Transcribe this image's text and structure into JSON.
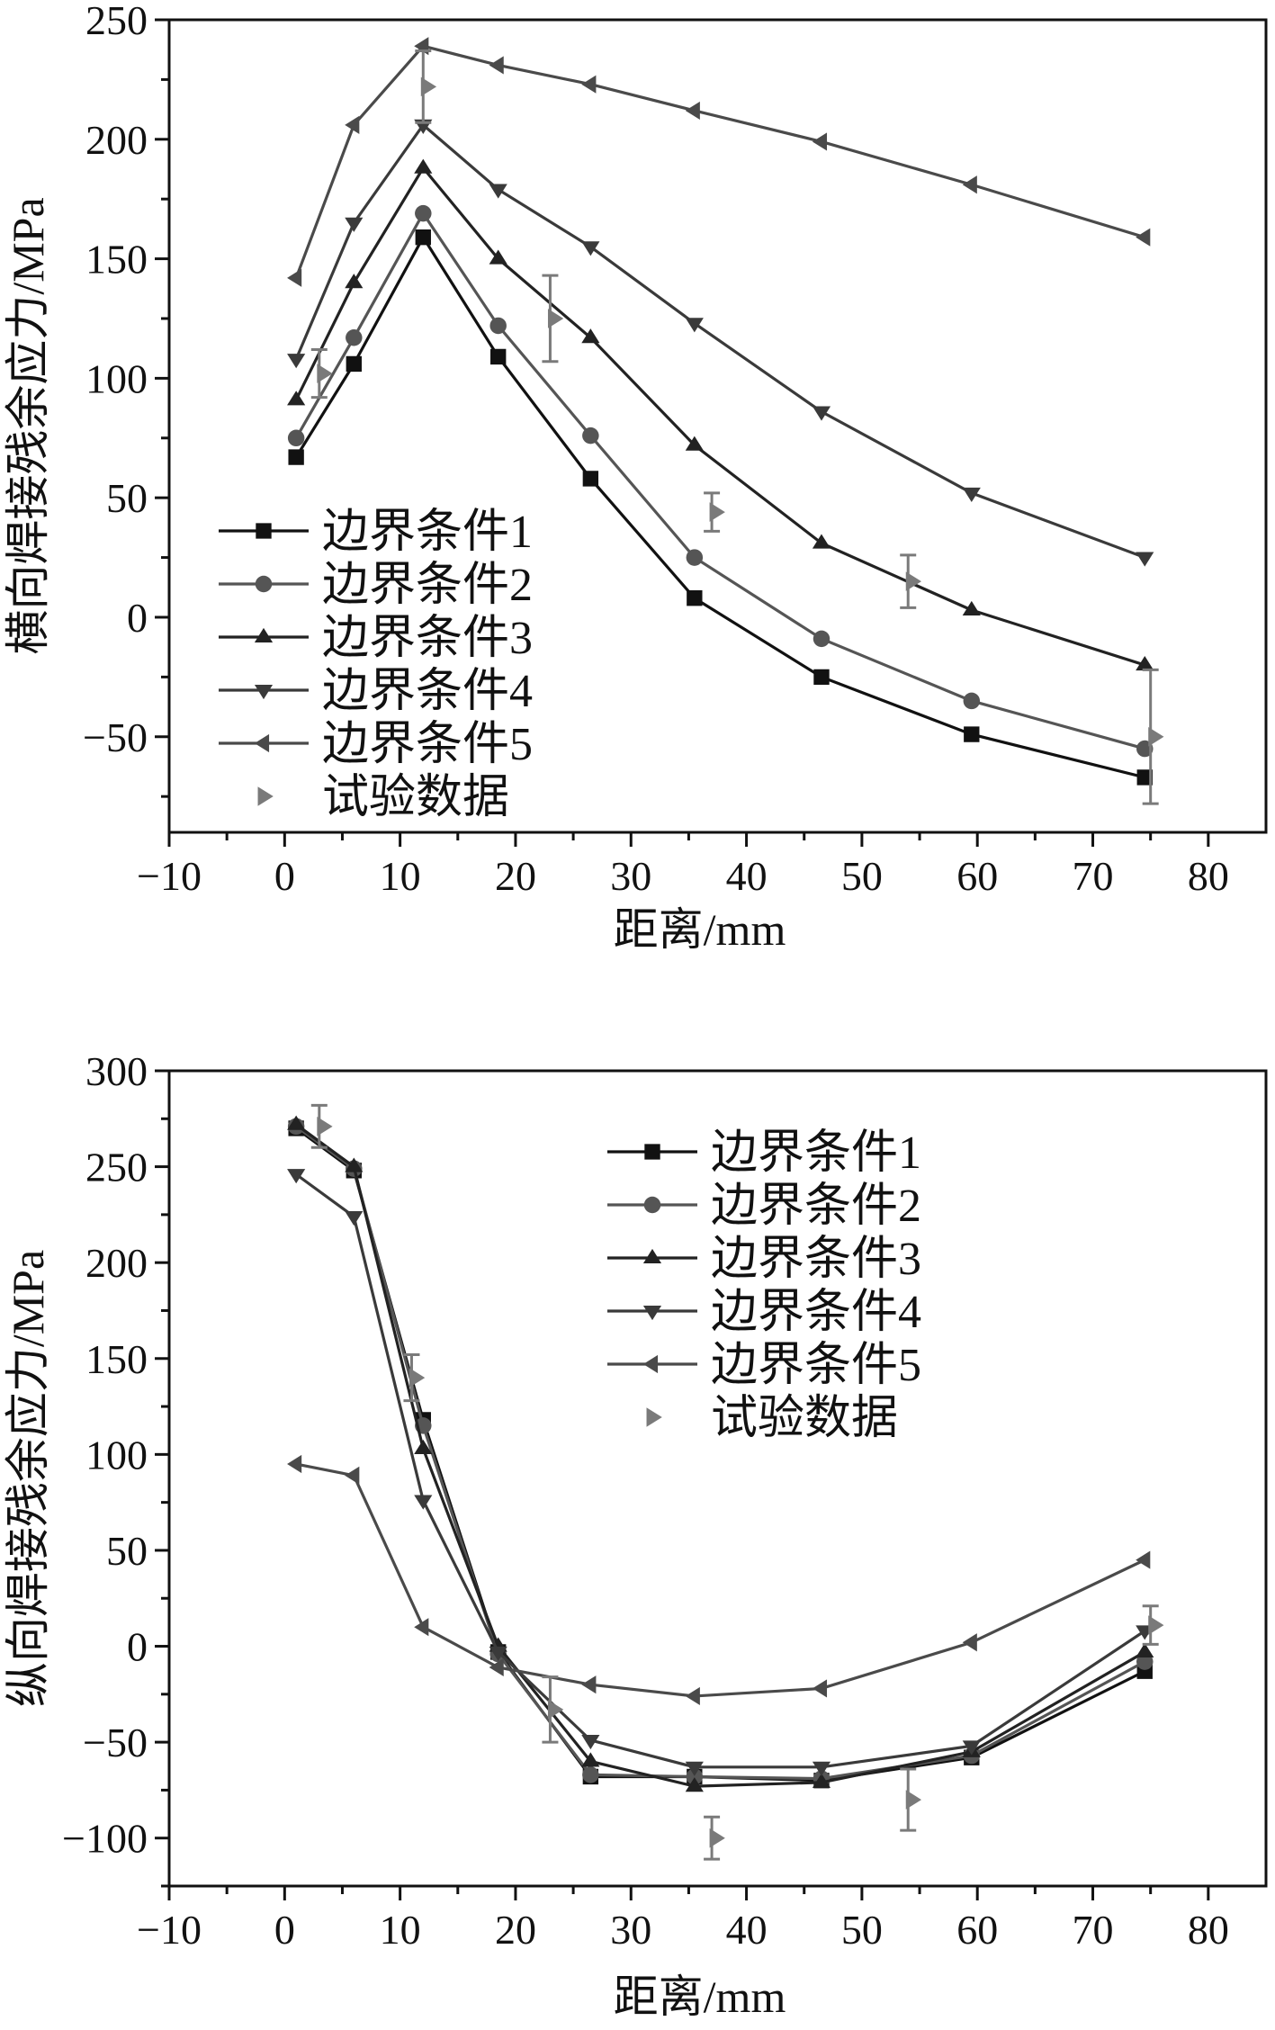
{
  "chart_data": [
    {
      "type": "line",
      "title": "",
      "xlabel": "距离/mm",
      "ylabel": "横向焊接残余应力/MPa",
      "xlim": [
        -10,
        85
      ],
      "ylim": [
        -90,
        250
      ],
      "xticks": [
        -10,
        0,
        10,
        20,
        30,
        40,
        50,
        60,
        70,
        80
      ],
      "xtick_labels": [
        "−10",
        "0",
        "10",
        "20",
        "30",
        "40",
        "50",
        "60",
        "70",
        "80"
      ],
      "yticks": [
        -50,
        0,
        50,
        100,
        150,
        200,
        250
      ],
      "ytick_labels": [
        "−50",
        "0",
        "50",
        "100",
        "150",
        "200",
        "250"
      ],
      "legend_position": "bottom-left",
      "series": [
        {
          "name": "边界条件1",
          "marker": "square",
          "color": "#111111",
          "x": [
            1,
            6,
            12,
            18.5,
            26.5,
            35.5,
            46.5,
            59.5,
            74.5
          ],
          "y": [
            67,
            106,
            159,
            109,
            58,
            8,
            -25,
            -49,
            -67
          ]
        },
        {
          "name": "边界条件2",
          "marker": "circle",
          "color": "#555555",
          "x": [
            1,
            6,
            12,
            18.5,
            26.5,
            35.5,
            46.5,
            59.5,
            74.5
          ],
          "y": [
            75,
            117,
            169,
            122,
            76,
            25,
            -9,
            -35,
            -55
          ]
        },
        {
          "name": "边界条件3",
          "marker": "triangle-up",
          "color": "#222222",
          "x": [
            1,
            6,
            12,
            18.5,
            26.5,
            35.5,
            46.5,
            59.5,
            74.5
          ],
          "y": [
            91,
            140,
            188,
            150,
            117,
            72,
            31,
            3,
            -20
          ]
        },
        {
          "name": "边界条件4",
          "marker": "triangle-down",
          "color": "#3a3a3a",
          "x": [
            1,
            6,
            12,
            18.5,
            26.5,
            35.5,
            46.5,
            59.5,
            74.5
          ],
          "y": [
            108,
            165,
            206,
            179,
            155,
            123,
            86,
            52,
            25
          ]
        },
        {
          "name": "边界条件5",
          "marker": "triangle-left",
          "color": "#4a4a4a",
          "x": [
            1,
            6,
            12,
            18.5,
            26.5,
            35.5,
            46.5,
            59.5,
            74.5
          ],
          "y": [
            142,
            206,
            239,
            231,
            223,
            212,
            199,
            181,
            159
          ]
        }
      ],
      "experimental": {
        "name": "试验数据",
        "marker": "triangle-right",
        "color": "#7a7a7a",
        "x": [
          3,
          12,
          23,
          37,
          54,
          75
        ],
        "y": [
          102,
          222,
          125,
          44,
          15,
          -50
        ],
        "error": [
          10,
          15,
          18,
          8,
          11,
          28
        ]
      }
    },
    {
      "type": "line",
      "title": "",
      "xlabel": "距离/mm",
      "ylabel": "纵向焊接残余应力/MPa",
      "xlim": [
        -10,
        85
      ],
      "ylim": [
        -125,
        300
      ],
      "xticks": [
        -10,
        0,
        10,
        20,
        30,
        40,
        50,
        60,
        70,
        80
      ],
      "xtick_labels": [
        "−10",
        "0",
        "10",
        "20",
        "30",
        "40",
        "50",
        "60",
        "70",
        "80"
      ],
      "yticks": [
        -100,
        -50,
        0,
        50,
        100,
        150,
        200,
        250,
        300
      ],
      "ytick_labels": [
        "−100",
        "−50",
        "0",
        "50",
        "100",
        "150",
        "200",
        "250",
        "300"
      ],
      "legend_position": "top-right",
      "series": [
        {
          "name": "边界条件1",
          "marker": "square",
          "color": "#111111",
          "x": [
            1,
            6,
            12,
            18.5,
            26.5,
            35.5,
            46.5,
            59.5,
            74.5
          ],
          "y": [
            270,
            248,
            118,
            -3,
            -68,
            -68,
            -70,
            -58,
            -13
          ]
        },
        {
          "name": "边界条件2",
          "marker": "circle",
          "color": "#555555",
          "x": [
            1,
            6,
            12,
            18.5,
            26.5,
            35.5,
            46.5,
            59.5,
            74.5
          ],
          "y": [
            271,
            249,
            115,
            -4,
            -67,
            -68,
            -69,
            -57,
            -8
          ]
        },
        {
          "name": "边界条件3",
          "marker": "triangle-up",
          "color": "#222222",
          "x": [
            1,
            6,
            12,
            18.5,
            26.5,
            35.5,
            46.5,
            59.5,
            74.5
          ],
          "y": [
            272,
            250,
            103,
            0,
            -60,
            -73,
            -71,
            -55,
            -3
          ]
        },
        {
          "name": "边界条件4",
          "marker": "triangle-down",
          "color": "#3a3a3a",
          "x": [
            1,
            6,
            12,
            18.5,
            26.5,
            35.5,
            46.5,
            59.5,
            74.5
          ],
          "y": [
            246,
            224,
            76,
            -3,
            -49,
            -63,
            -63,
            -52,
            8
          ]
        },
        {
          "name": "边界条件5",
          "marker": "triangle-left",
          "color": "#4a4a4a",
          "x": [
            1,
            6,
            12,
            18.5,
            26.5,
            35.5,
            46.5,
            59.5,
            74.5
          ],
          "y": [
            95,
            89,
            10,
            -11,
            -20,
            -26,
            -22,
            2,
            45
          ]
        }
      ],
      "experimental": {
        "name": "试验数据",
        "marker": "triangle-right",
        "color": "#7a7a7a",
        "x": [
          3,
          11,
          23,
          37,
          54,
          75
        ],
        "y": [
          271,
          140,
          -33,
          -100,
          -80,
          11
        ],
        "error": [
          11,
          12,
          17,
          11,
          16,
          10
        ]
      }
    }
  ]
}
